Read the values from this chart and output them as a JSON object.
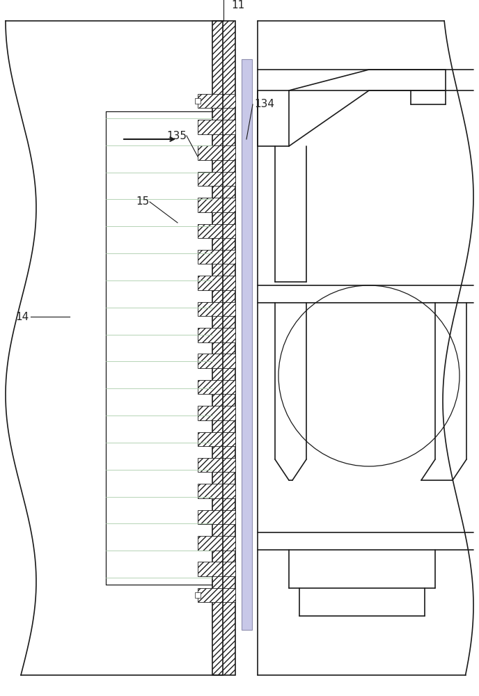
{
  "fig_width": 6.88,
  "fig_height": 10.0,
  "dpi": 100,
  "bg_color": "#ffffff",
  "line_color": "#1a1a1a",
  "label_color": "#222222",
  "label_fontsize": 11,
  "purple_panel_color": "#c8c8e8",
  "purple_panel_edge": "#9090b0"
}
